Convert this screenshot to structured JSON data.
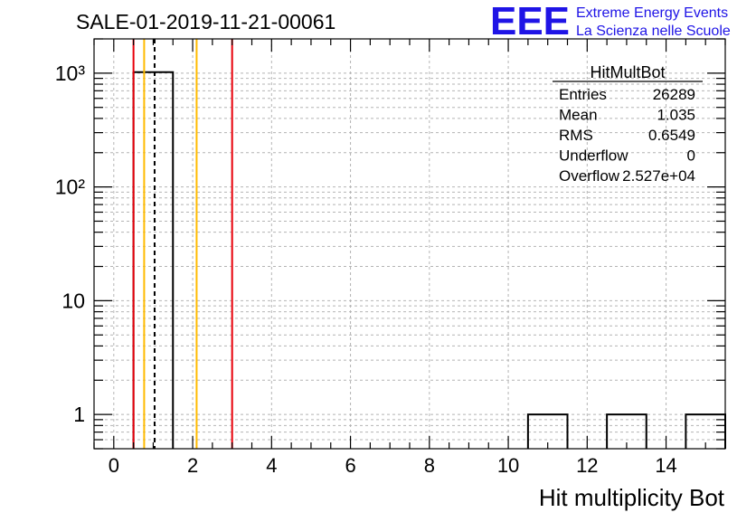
{
  "header": {
    "run_title": "SALE-01-2019-11-21-00061",
    "logo_text": "EEE",
    "brand_line1": "Extreme Energy Events",
    "brand_line2": "La Scienza nelle Scuole"
  },
  "stats_box": {
    "title": "HitMultBot",
    "rows": [
      {
        "label": "Entries",
        "value": "26289"
      },
      {
        "label": "Mean",
        "value": "1.035"
      },
      {
        "label": "RMS",
        "value": "0.6549"
      },
      {
        "label": "Underflow",
        "value": "0"
      },
      {
        "label": "Overflow",
        "value": "2.527e+04"
      }
    ]
  },
  "colors": {
    "histogram": "#000000",
    "grid": "#b4b4b4",
    "red_line": "#e8000b",
    "orange_line": "#ffbb00",
    "mean_line": "#000000",
    "logo": "#1f14e6",
    "brand_text": "#1f14e6"
  },
  "chart_data": {
    "type": "bar",
    "title": "SALE-01-2019-11-21-00061",
    "xlabel": "Hit multiplicity Bot",
    "ylabel": "",
    "x_scale": "linear",
    "y_scale": "log",
    "xlim": [
      -0.5,
      15.5
    ],
    "ylim": [
      0.5,
      2000
    ],
    "grid": true,
    "x_ticks": [
      0,
      2,
      4,
      6,
      8,
      10,
      12,
      14
    ],
    "x_tick_labels": [
      "0",
      "2",
      "4",
      "6",
      "8",
      "10",
      "12",
      "14"
    ],
    "y_ticks": [
      1,
      10,
      100,
      1000
    ],
    "y_tick_labels": [
      "1",
      "10",
      "10²",
      "10³"
    ],
    "bins": [
      {
        "low": 0.5,
        "high": 1.5,
        "count": 1020
      },
      {
        "low": 10.5,
        "high": 11.5,
        "count": 1
      },
      {
        "low": 12.5,
        "high": 13.5,
        "count": 1
      },
      {
        "low": 14.5,
        "high": 15.5,
        "count": 1
      }
    ],
    "vertical_lines": [
      {
        "x": 0.5,
        "color": "red",
        "style": "solid"
      },
      {
        "x": 0.77,
        "color": "orange",
        "style": "solid"
      },
      {
        "x": 1.035,
        "color": "black",
        "style": "dashed"
      },
      {
        "x": 2.1,
        "color": "orange",
        "style": "solid"
      },
      {
        "x": 3.0,
        "color": "red",
        "style": "solid"
      }
    ]
  }
}
